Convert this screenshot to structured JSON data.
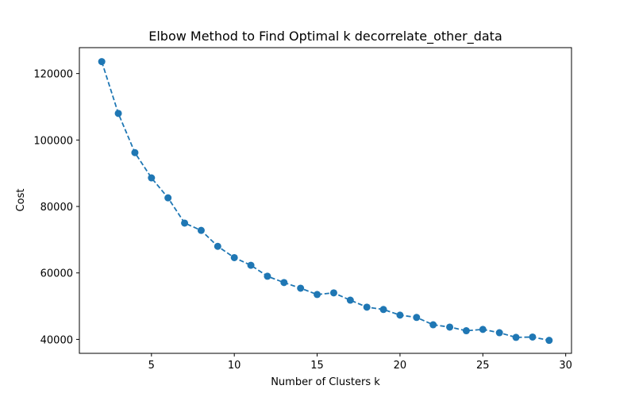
{
  "chart_data": {
    "type": "line",
    "title": "Elbow Method to Find Optimal k decorrelate_other_data",
    "xlabel": "Number of Clusters k",
    "ylabel": "Cost",
    "xlim": [
      0.65,
      30.35
    ],
    "ylim": [
      35800,
      127800
    ],
    "x_ticks": [
      5,
      10,
      15,
      20,
      25,
      30
    ],
    "y_ticks": [
      40000,
      60000,
      80000,
      100000,
      120000
    ],
    "grid": false,
    "series": [
      {
        "color": "#1f77b4",
        "line_style": "dashed",
        "marker": "circle",
        "x": [
          2,
          3,
          4,
          5,
          6,
          7,
          8,
          9,
          10,
          11,
          12,
          13,
          14,
          15,
          16,
          17,
          18,
          19,
          20,
          21,
          22,
          23,
          24,
          25,
          26,
          27,
          28,
          29
        ],
        "y": [
          123600,
          108000,
          96200,
          88600,
          82600,
          75000,
          72800,
          68000,
          64600,
          62300,
          59000,
          57100,
          55400,
          53500,
          54000,
          51800,
          49700,
          49000,
          47300,
          46600,
          44400,
          43700,
          42600,
          43000,
          42000,
          40600,
          40700,
          39700
        ]
      }
    ]
  }
}
